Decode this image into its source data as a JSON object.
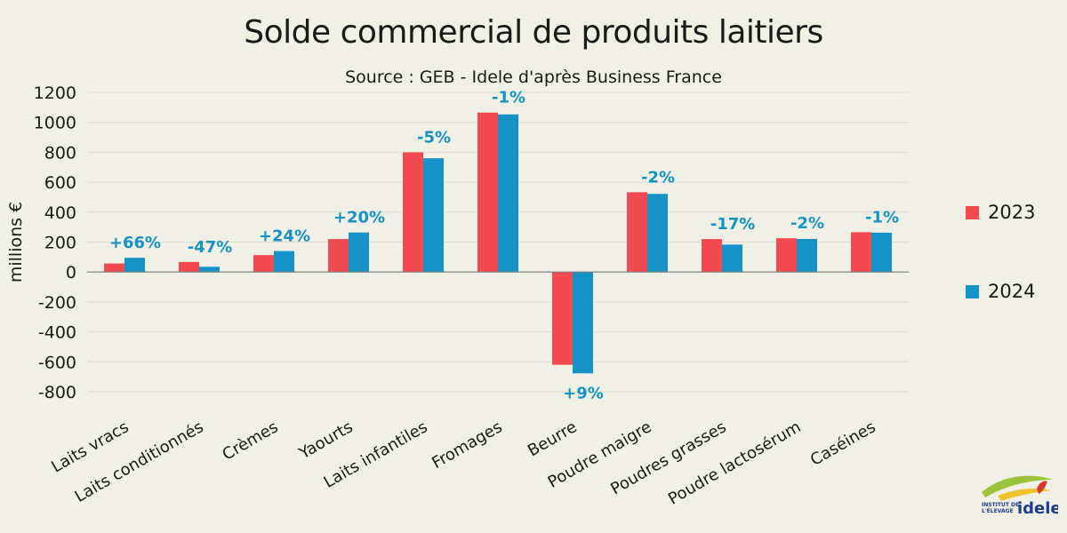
{
  "chart_data": {
    "type": "bar",
    "title": "Solde commercial de produits laitiers",
    "subtitle": "Source : GEB - Idele d'après Business France",
    "ylabel": "millions €",
    "ylim": [
      -800,
      1200
    ],
    "yticks": [
      1200,
      1000,
      800,
      600,
      400,
      200,
      0,
      -200,
      -400,
      -600,
      -800
    ],
    "categories": [
      "Laits vracs",
      "Laits conditionnés",
      "Crèmes",
      "Yaourts",
      "Laits infantiles",
      "Fromages",
      "Beurre",
      "Poudre maigre",
      "Poudres grasses",
      "Poudre lactosérum",
      "Caséines"
    ],
    "series": [
      {
        "name": "2023",
        "color": "#f24a50",
        "values": [
          57,
          67,
          113,
          220,
          800,
          1065,
          -620,
          533,
          220,
          226,
          266
        ]
      },
      {
        "name": "2024",
        "color": "#1593c6",
        "values": [
          95,
          35,
          140,
          264,
          760,
          1053,
          -677,
          522,
          183,
          221,
          263
        ]
      }
    ],
    "annotations": [
      "+66%",
      "-47%",
      "+24%",
      "+20%",
      "-5%",
      "-1%",
      "+9%",
      "-2%",
      "-17%",
      "-2%",
      "-1%"
    ],
    "annotation_color": "#1593c6",
    "grid": true,
    "legend_position": "right"
  },
  "logo": {
    "line1": "INSTITUT DE",
    "line2": "L'ÉLEVAGE",
    "brand": "idele"
  }
}
